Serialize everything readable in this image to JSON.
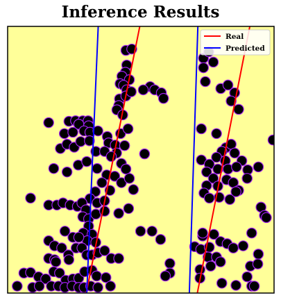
{
  "chart_data": {
    "type": "scatter",
    "title": "Inference Results",
    "xlabel": "",
    "ylabel": "",
    "xlim": [
      0,
      100
    ],
    "ylim": [
      0,
      100
    ],
    "grid": false,
    "legend_placement": "top-right",
    "colors": {
      "background": "#ffff99",
      "point_fill": "#000000",
      "point_edge": "#a020f0",
      "real": "#ff0000",
      "predicted": "#0000ff"
    },
    "legend": [
      {
        "label": "Real",
        "color": "#ff0000"
      },
      {
        "label": "Predicted",
        "color": "#0000ff"
      }
    ],
    "lines": [
      {
        "name": "Real",
        "x": [
          29.5,
          49.6
        ],
        "y": [
          0,
          100
        ]
      },
      {
        "name": "Real",
        "x": [
          71.2,
          90.9
        ],
        "y": [
          0,
          100
        ]
      },
      {
        "name": "Predicted",
        "x": [
          29.7,
          34
        ],
        "y": [
          0,
          100
        ]
      },
      {
        "name": "Predicted",
        "x": [
          68.2,
          71.4
        ],
        "y": [
          0,
          100
        ]
      }
    ],
    "points": [
      [
        44.4,
        91
      ],
      [
        46.6,
        91.5
      ],
      [
        44.7,
        85.5
      ],
      [
        44.2,
        82.8
      ],
      [
        42.9,
        81.3
      ],
      [
        45.7,
        80
      ],
      [
        42.2,
        78.5
      ],
      [
        43.5,
        77.9
      ],
      [
        44.7,
        76.2
      ],
      [
        42,
        72.8
      ],
      [
        44.4,
        73.9
      ],
      [
        41.7,
        70.3
      ],
      [
        46.4,
        75.5
      ],
      [
        41,
        68.7
      ],
      [
        43.2,
        66.8
      ],
      [
        53.5,
        77.4
      ],
      [
        55.2,
        76.2
      ],
      [
        57.7,
        75.1
      ],
      [
        58.5,
        73
      ],
      [
        50.9,
        76.2
      ],
      [
        15.4,
        63.9
      ],
      [
        23,
        64.4
      ],
      [
        25.5,
        64.6
      ],
      [
        28.2,
        64.6
      ],
      [
        30.2,
        64.6
      ],
      [
        26.7,
        63.3
      ],
      [
        30.4,
        62.7
      ],
      [
        21.3,
        59.8
      ],
      [
        24.5,
        60.3
      ],
      [
        28.7,
        60.8
      ],
      [
        30.9,
        60.3
      ],
      [
        33.9,
        60.8
      ],
      [
        37.4,
        58.7
      ],
      [
        37.9,
        56.3
      ],
      [
        40.4,
        55.5
      ],
      [
        40.9,
        52.5
      ],
      [
        42.4,
        59.8
      ],
      [
        43.9,
        55.3
      ],
      [
        45.2,
        61.6
      ],
      [
        51.4,
        52.2
      ],
      [
        19.8,
        54.2
      ],
      [
        22.3,
        55.8
      ],
      [
        25,
        54.7
      ],
      [
        27.4,
        56.8
      ],
      [
        30.7,
        57.1
      ],
      [
        33.1,
        53.1
      ],
      [
        36.4,
        53.1
      ],
      [
        38.9,
        51.2
      ],
      [
        42.7,
        48.6
      ],
      [
        44.4,
        46.5
      ],
      [
        17.3,
        46.7
      ],
      [
        22.3,
        45.4
      ],
      [
        26.5,
        48
      ],
      [
        29.7,
        49.3
      ],
      [
        33.6,
        46.7
      ],
      [
        37.2,
        44.3
      ],
      [
        40.2,
        43.8
      ],
      [
        42.7,
        41.4
      ],
      [
        45.7,
        43
      ],
      [
        47.2,
        38.8
      ],
      [
        35.4,
        41.4
      ],
      [
        38.4,
        38.5
      ],
      [
        32.9,
        38
      ],
      [
        30.9,
        35.4
      ],
      [
        33.6,
        33.8
      ],
      [
        36.4,
        34.6
      ],
      [
        8.6,
        35.6
      ],
      [
        15.4,
        33
      ],
      [
        18.5,
        33
      ],
      [
        20.8,
        33.8
      ],
      [
        23.5,
        33
      ],
      [
        26.2,
        32.5
      ],
      [
        27.9,
        33.8
      ],
      [
        29.4,
        31.2
      ],
      [
        28.2,
        28.6
      ],
      [
        30.4,
        27.8
      ],
      [
        33.1,
        29.6
      ],
      [
        36.4,
        30.7
      ],
      [
        41.7,
        29.9
      ],
      [
        45.4,
        31.7
      ],
      [
        49.9,
        23.2
      ],
      [
        54.2,
        23.2
      ],
      [
        57.4,
        20.1
      ],
      [
        30.4,
        25.1
      ],
      [
        28.4,
        22.5
      ],
      [
        31.7,
        22
      ],
      [
        29.9,
        19.6
      ],
      [
        33.1,
        19
      ],
      [
        25.7,
        16.9
      ],
      [
        27.9,
        16.9
      ],
      [
        29.7,
        14.3
      ],
      [
        31.7,
        14.3
      ],
      [
        33.9,
        15.1
      ],
      [
        36.4,
        15.9
      ],
      [
        38.9,
        13
      ],
      [
        41.7,
        13
      ],
      [
        21.5,
        23.2
      ],
      [
        24.5,
        20.9
      ],
      [
        26.7,
        20.9
      ],
      [
        15.4,
        19.6
      ],
      [
        17.6,
        17.7
      ],
      [
        20.3,
        16.9
      ],
      [
        22.8,
        14.3
      ],
      [
        15.4,
        13
      ],
      [
        17.6,
        12.5
      ],
      [
        23,
        12.5
      ],
      [
        18.1,
        11.7
      ],
      [
        6.1,
        7.5
      ],
      [
        8.6,
        7.7
      ],
      [
        11.6,
        6.1
      ],
      [
        14.3,
        5.3
      ],
      [
        17.3,
        8
      ],
      [
        19.5,
        7.5
      ],
      [
        21.8,
        4.8
      ],
      [
        24.5,
        5.3
      ],
      [
        26.7,
        5.6
      ],
      [
        28.9,
        8
      ],
      [
        31.7,
        8.5
      ],
      [
        33.4,
        6.4
      ],
      [
        36.9,
        5.8
      ],
      [
        3.6,
        2.6
      ],
      [
        9.4,
        2.1
      ],
      [
        11.9,
        2.6
      ],
      [
        16.4,
        2.6
      ],
      [
        19.1,
        2.6
      ],
      [
        21.5,
        2.1
      ],
      [
        24.2,
        2.6
      ],
      [
        26.7,
        2.1
      ],
      [
        28.7,
        2.1
      ],
      [
        31.2,
        2.6
      ],
      [
        33.9,
        2.1
      ],
      [
        38.6,
        2.6
      ],
      [
        60.9,
        11.1
      ],
      [
        60.9,
        7.5
      ],
      [
        59.2,
        6.4
      ],
      [
        73.5,
        88.1
      ],
      [
        75.5,
        90.5
      ],
      [
        77.2,
        86.6
      ],
      [
        73.5,
        84.5
      ],
      [
        74.2,
        79.3
      ],
      [
        80,
        76.7
      ],
      [
        82.7,
        78
      ],
      [
        85.2,
        75.1
      ],
      [
        83.9,
        72
      ],
      [
        86.7,
        68.9
      ],
      [
        72.7,
        61.6
      ],
      [
        78.4,
        59.8
      ],
      [
        81.9,
        54.5
      ],
      [
        83.9,
        55.8
      ],
      [
        80.4,
        53.1
      ],
      [
        85.2,
        52.5
      ],
      [
        78.4,
        50.9
      ],
      [
        81.7,
        49.6
      ],
      [
        87.9,
        49.6
      ],
      [
        72.7,
        49.9
      ],
      [
        75.7,
        48.3
      ],
      [
        78.9,
        46.5
      ],
      [
        82.7,
        46.5
      ],
      [
        85.9,
        47.3
      ],
      [
        90.1,
        46.2
      ],
      [
        94.1,
        47.3
      ],
      [
        89.9,
        43
      ],
      [
        74.7,
        45.4
      ],
      [
        77.2,
        43
      ],
      [
        74.7,
        40.3
      ],
      [
        78.9,
        40.1
      ],
      [
        82.2,
        42.5
      ],
      [
        84.7,
        41.4
      ],
      [
        86.7,
        38.5
      ],
      [
        73.7,
        37.5
      ],
      [
        75.7,
        35.6
      ],
      [
        79.4,
        35.9
      ],
      [
        83.4,
        35.1
      ],
      [
        85.7,
        38
      ],
      [
        73.2,
        21.4
      ],
      [
        73.2,
        22.5
      ],
      [
        77.4,
        22
      ],
      [
        79.9,
        19.3
      ],
      [
        82.4,
        18.5
      ],
      [
        84.7,
        16.9
      ],
      [
        88.4,
        17.7
      ],
      [
        91.6,
        22.5
      ],
      [
        70.2,
        17.4
      ],
      [
        72.5,
        16.4
      ],
      [
        75.7,
        17.2
      ],
      [
        75.2,
        13.5
      ],
      [
        78.4,
        13.5
      ],
      [
        72.2,
        8.8
      ],
      [
        76.2,
        10.1
      ],
      [
        79.9,
        11.7
      ],
      [
        91.1,
        10.1
      ],
      [
        95.1,
        32.2
      ],
      [
        96.4,
        29.1
      ],
      [
        97.1,
        28.3
      ],
      [
        94.1,
        14.6
      ],
      [
        93.9,
        10.9
      ],
      [
        89.9,
        6.1
      ],
      [
        72.2,
        5.6
      ],
      [
        80.4,
        3.7
      ],
      [
        85.7,
        2.9
      ],
      [
        91.6,
        2.6
      ],
      [
        92.6,
        2.6
      ],
      [
        99.6,
        57.4
      ]
    ]
  }
}
